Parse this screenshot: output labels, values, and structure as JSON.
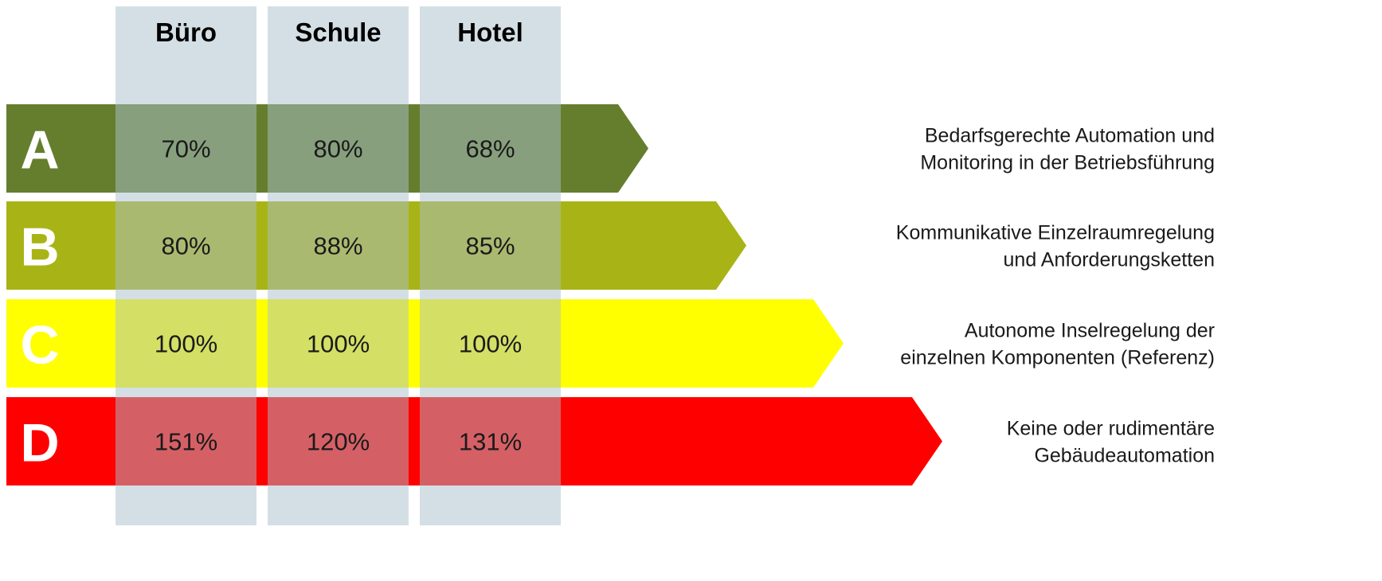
{
  "columns": [
    "Büro",
    "Schule",
    "Hotel"
  ],
  "rows": [
    {
      "class": "A",
      "color": "#657e2e",
      "values": [
        "70%",
        "80%",
        "68%"
      ],
      "description": [
        "Bedarfsgerechte Automation und",
        "Monitoring in der Betriebsführung"
      ]
    },
    {
      "class": "B",
      "color": "#a8b415",
      "values": [
        "80%",
        "88%",
        "85%"
      ],
      "description": [
        "Kommunikative Einzelraumregelung",
        "und Anforderungsketten"
      ]
    },
    {
      "class": "C",
      "color": "#ffff00",
      "values": [
        "100%",
        "100%",
        "100%"
      ],
      "description": [
        "Autonome Inselregelung der",
        "einzelnen Komponenten (Referenz)"
      ]
    },
    {
      "class": "D",
      "color": "#ff0000",
      "values": [
        "151%",
        "120%",
        "131%"
      ],
      "description": [
        "Keine oder rudimentäre",
        "Gebäudeautomation"
      ]
    }
  ],
  "overlay_color": "#a9bfcc"
}
